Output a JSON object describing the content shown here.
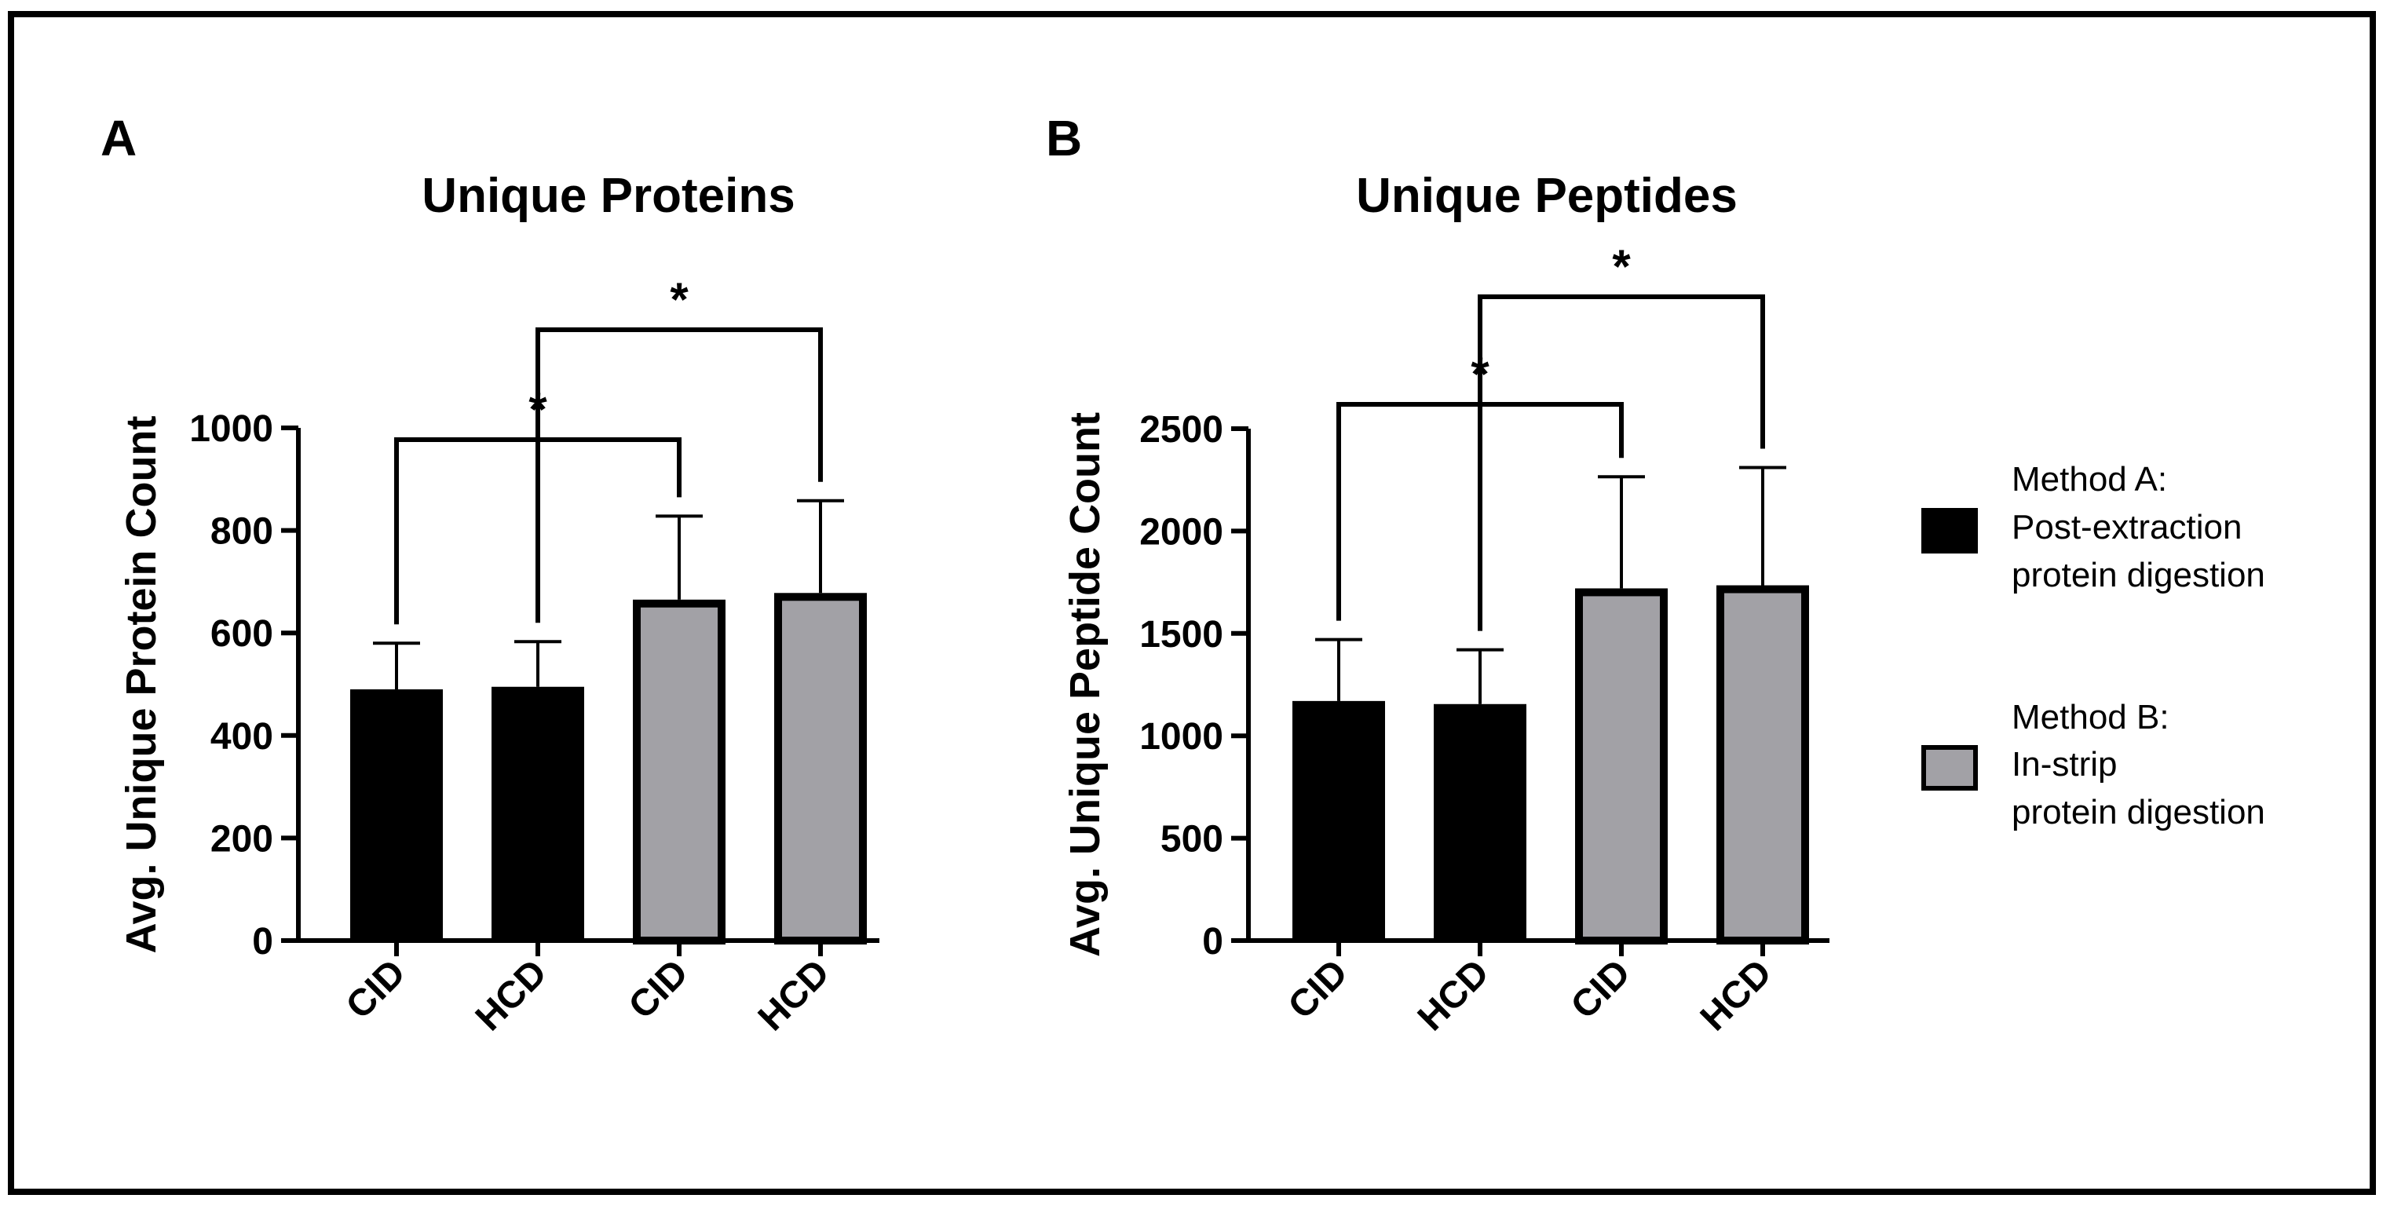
{
  "chart_data": [
    {
      "panel": "A",
      "type": "bar",
      "title": "Unique Proteins",
      "xlabel": "",
      "ylabel": "Avg. Unique Protein Count",
      "ylim": [
        0,
        1000
      ],
      "yticks": [
        0,
        200,
        400,
        600,
        800,
        1000
      ],
      "categories": [
        "CID",
        "HCD",
        "CID",
        "HCD"
      ],
      "values": [
        490,
        495,
        665,
        678
      ],
      "errors": [
        90,
        88,
        163,
        180
      ],
      "groups": [
        "Method A",
        "Method A",
        "Method B",
        "Method B"
      ],
      "significance": [
        {
          "from": 0,
          "to": 2,
          "label": "*"
        },
        {
          "from": 1,
          "to": 3,
          "label": "*"
        }
      ]
    },
    {
      "panel": "B",
      "type": "bar",
      "title": "Unique Peptides",
      "xlabel": "",
      "ylabel": "Avg. Unique Peptide Count",
      "ylim": [
        0,
        2500
      ],
      "yticks": [
        0,
        500,
        1000,
        1500,
        2000,
        2500
      ],
      "categories": [
        "CID",
        "HCD",
        "CID",
        "HCD"
      ],
      "values": [
        1170,
        1155,
        1720,
        1735
      ],
      "errors": [
        300,
        265,
        545,
        575
      ],
      "groups": [
        "Method A",
        "Method A",
        "Method B",
        "Method B"
      ],
      "significance": [
        {
          "from": 0,
          "to": 2,
          "label": "*"
        },
        {
          "from": 1,
          "to": 3,
          "label": "*"
        }
      ]
    }
  ],
  "legend": [
    {
      "group": "Method A",
      "lines": [
        "Method A:",
        "Post-extraction",
        "protein digestion"
      ],
      "color": "#000000"
    },
    {
      "group": "Method B",
      "lines": [
        "Method B:",
        "In-strip",
        "protein digestion"
      ],
      "color": "#a2a1a6"
    }
  ],
  "colors": {
    "method_a": "#000000",
    "method_b": "#a2a1a6",
    "outline": "#000000"
  }
}
